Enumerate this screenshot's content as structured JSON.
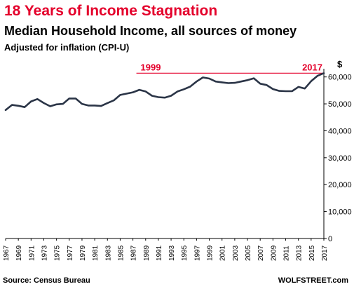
{
  "chart_data": {
    "type": "line",
    "title": "18 Years of Income Stagnation",
    "subtitle": "Median Household Income, all sources of money",
    "note": "Adjusted for inflation (CPI-U)",
    "y_unit": "$",
    "source": "Source: Census Bureau",
    "credit": "WOLFSTREET.com",
    "ylim": [
      0,
      62000
    ],
    "xlim": [
      1967,
      2017
    ],
    "y_ticks": [
      "0",
      "10,000",
      "20,000",
      "30,000",
      "40,000",
      "50,000",
      "60,000"
    ],
    "y_tick_values": [
      0,
      10000,
      20000,
      30000,
      40000,
      50000,
      60000
    ],
    "x_ticks": [
      "1967",
      "1969",
      "1971",
      "1973",
      "1975",
      "1977",
      "1979",
      "1981",
      "1983",
      "1985",
      "1987",
      "1989",
      "1991",
      "1993",
      "1995",
      "1997",
      "1999",
      "2001",
      "2003",
      "2005",
      "2007",
      "2009",
      "2011",
      "2013",
      "2015",
      "2017"
    ],
    "grid": false,
    "line_color": "#2b3547",
    "reference_line": {
      "value": 61400,
      "from": 1999,
      "to": 2017,
      "color": "#e4002b",
      "label_start": "1999",
      "label_end": "2017"
    },
    "series": [
      {
        "x": [
          1967,
          1968,
          1969,
          1970,
          1971,
          1972,
          1973,
          1974,
          1975,
          1976,
          1977,
          1978,
          1979,
          1980,
          1981,
          1982,
          1983,
          1984,
          1985,
          1986,
          1987,
          1988,
          1989,
          1990,
          1991,
          1992,
          1993,
          1994,
          1995,
          1996,
          1997,
          1998,
          1999,
          2000,
          2001,
          2002,
          2003,
          2004,
          2005,
          2006,
          2007,
          2008,
          2009,
          2010,
          2011,
          2012,
          2013,
          2014,
          2015,
          2016,
          2017
        ],
        "values": [
          47700,
          49600,
          49300,
          48800,
          50900,
          51800,
          50300,
          49100,
          49800,
          50000,
          52000,
          52000,
          50000,
          49400,
          49400,
          49200,
          50300,
          51300,
          53300,
          53800,
          54300,
          55200,
          54600,
          53000,
          52500,
          52300,
          53000,
          54600,
          55400,
          56400,
          58300,
          59800,
          59400,
          58300,
          58000,
          57700,
          57800,
          58300,
          58800,
          59500,
          57500,
          57000,
          55500,
          54800,
          54700,
          54700,
          56300,
          55700,
          58400,
          60400,
          61400
        ]
      }
    ]
  }
}
